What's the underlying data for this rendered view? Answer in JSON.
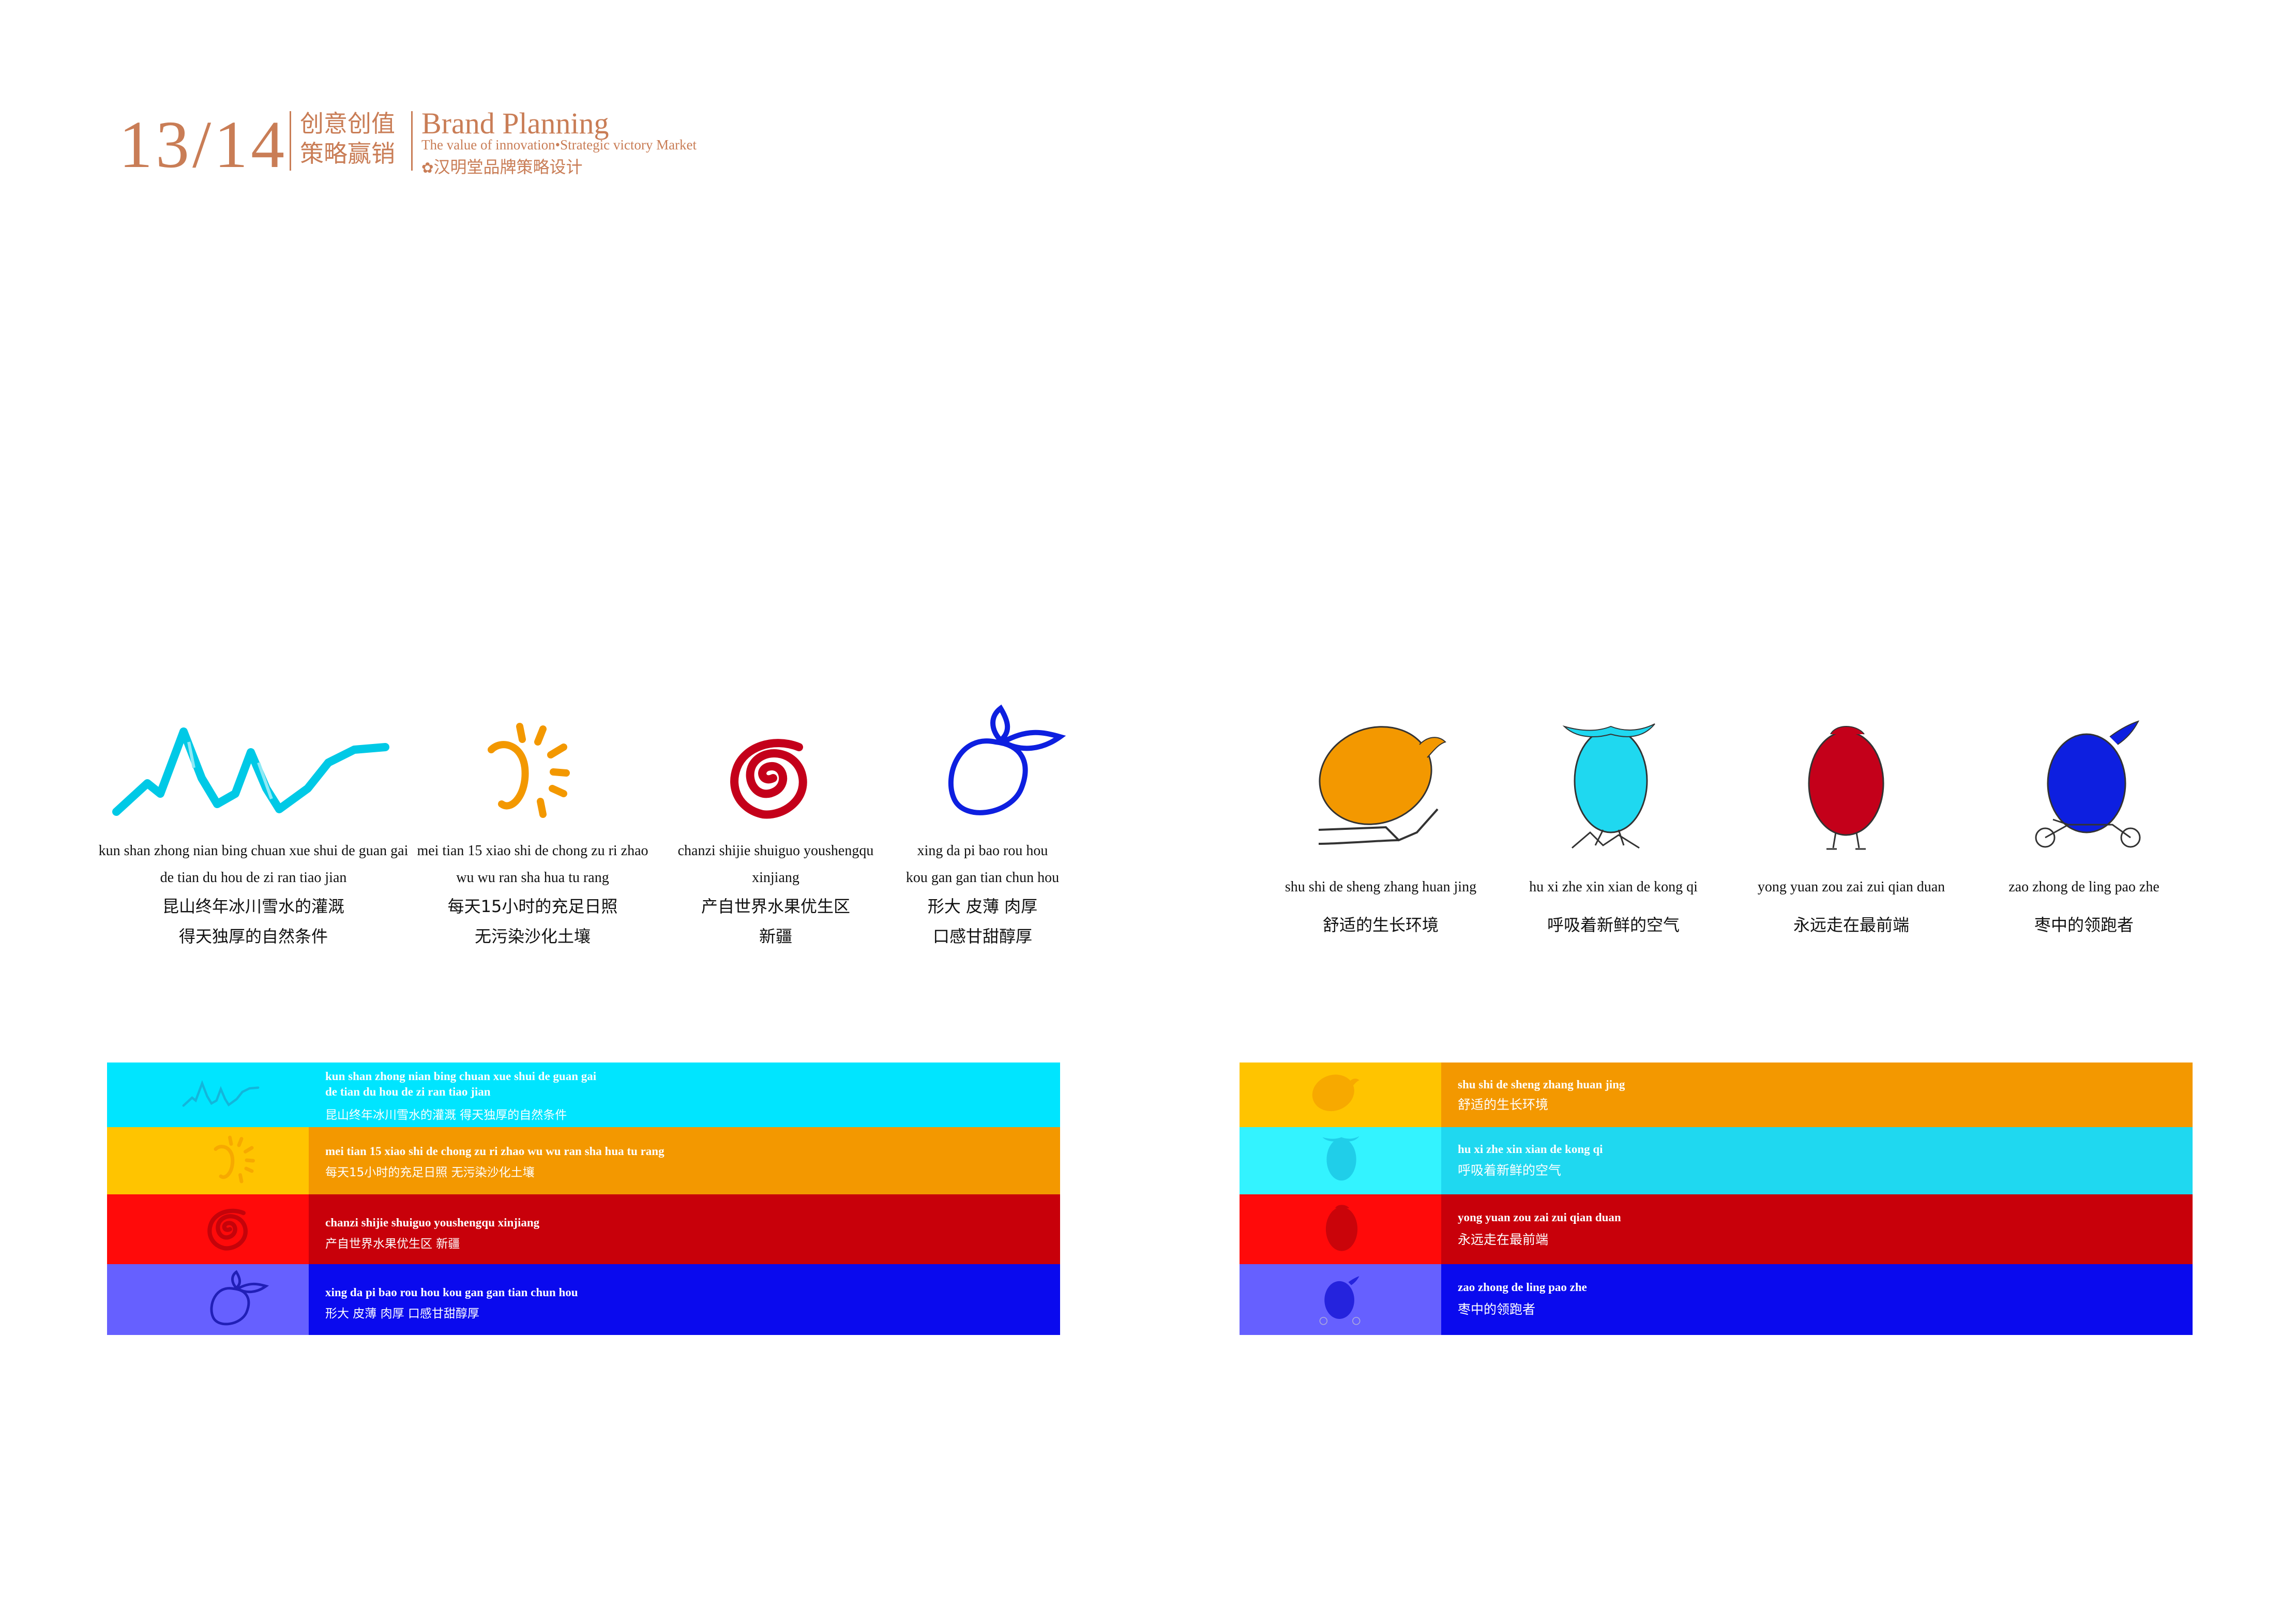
{
  "header": {
    "page_num": "13/14",
    "cn_line1": "创意创值",
    "cn_line2": "策略赢销",
    "brand": "Brand Planning",
    "sub": "The value of innovation•Strategic victory Market",
    "company": "汉明堂品牌策略设计"
  },
  "left_items": [
    {
      "py1": "kun shan zhong nian bing chuan xue shui de guan gai",
      "py2": "de tian du hou de zi ran tiao jian",
      "cn1": "昆山终年冰川雪水的灌溉",
      "cn2": "得天独厚的自然条件",
      "color": "#00c9e6",
      "icon": "mountain-icon"
    },
    {
      "py1": "mei tian 15 xiao shi de chong zu ri zhao",
      "py2": "wu wu ran sha hua tu rang",
      "cn1": "每天15小时的充足日照",
      "cn2": "无污染沙化土壤",
      "color": "#f39800",
      "icon": "sun-icon"
    },
    {
      "py1": "chanzi shijie shuiguo youshengqu",
      "py2": "xinjiang",
      "cn1": "产自世界水果优生区",
      "cn2": "新疆",
      "color": "#c4001a",
      "icon": "spiral-icon"
    },
    {
      "py1": "xing da  pi bao  rou hou",
      "py2": "kou gan gan tian chun hou",
      "cn1": "形大  皮薄  肉厚",
      "cn2": "口感甘甜醇厚",
      "color": "#0d1fe0",
      "icon": "jujube-icon"
    }
  ],
  "right_items": [
    {
      "py": "shu shi de sheng zhang huan jing",
      "cn": "舒适的生长环境",
      "color": "#f39800",
      "icon": "orange-jujube-icon"
    },
    {
      "py": "hu xi zhe xin xian de kong qi",
      "cn": "呼吸着新鲜的空气",
      "color": "#1fd8f0",
      "icon": "cyan-jujube-icon"
    },
    {
      "py": "yong yuan zou zai zui qian duan",
      "cn": "永远走在最前端",
      "color": "#c4001a",
      "icon": "red-jujube-icon"
    },
    {
      "py": "zao zhong de ling pao zhe",
      "cn": "枣中的领跑者",
      "color": "#0d1fe0",
      "icon": "blue-jujube-icon"
    }
  ],
  "left_bands": [
    {
      "t1": "kun shan zhong nian bing chuan xue shui de guan gai",
      "t1b": "de tian du hou de zi ran tiao jian",
      "t2": "昆山终年冰川雪水的灌溉   得天独厚的自然条件",
      "left": "#00e5ff",
      "right": "#00e5ff"
    },
    {
      "t1": "mei tian 15 xiao shi de chong zu ri zhao wu wu ran sha hua tu rang",
      "t2": "每天15小时的充足日照   无污染沙化土壤",
      "left": "#ffc400",
      "right": "#f39800"
    },
    {
      "t1": "chanzi shijie shuiguo youshengqu  xinjiang",
      "t2": "产自世界水果优生区   新疆",
      "left": "#ff0a0a",
      "right": "#c8000a"
    },
    {
      "t1": "xing da pi bao rou hou kou gan gan tian chun hou",
      "t2": "形大  皮薄  肉厚   口感甘甜醇厚",
      "left": "#6660ff",
      "right": "#0a0aee"
    }
  ],
  "right_bands": [
    {
      "t1": "shu shi de sheng zhang huan jing",
      "t2": "舒适的生长环境",
      "left": "#ffc400",
      "right": "#f39800"
    },
    {
      "t1": "hu xi zhe xin xian de kong qi",
      "t2": "呼吸着新鲜的空气",
      "left": "#33f3ff",
      "right": "#1fd8f0"
    },
    {
      "t1": "yong yuan zou zai zui qian duan",
      "t2": "永远走在最前端",
      "left": "#ff0a0a",
      "right": "#c8000a"
    },
    {
      "t1": "zao zhong de ling pao zhe",
      "t2": "枣中的领跑者",
      "left": "#6660ff",
      "right": "#0a0aee"
    }
  ]
}
